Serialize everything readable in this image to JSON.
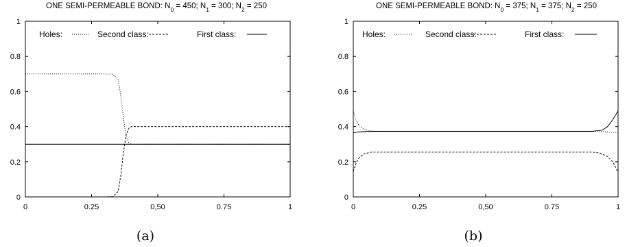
{
  "chart_data": [
    {
      "type": "line",
      "title": {
        "prefix": "ONE SEMI-PERMEABLE BOND:  N",
        "n0_sub": "0",
        "n0_val": " = 450; N",
        "n1_sub": "1",
        "n1_val": " = 300; N",
        "n2_sub": "2",
        "n2_val": " = 250"
      },
      "caption": "(a)",
      "xlim": [
        0,
        1
      ],
      "ylim": [
        0,
        1
      ],
      "xticks": [
        "0",
        "0.25",
        "0,50",
        "0.75",
        "1"
      ],
      "xtick_values": [
        0,
        0.25,
        0.5,
        0.75,
        1
      ],
      "yticks": [
        "0",
        "0.2",
        "0.4",
        "0.6",
        "0.8",
        "1"
      ],
      "ytick_values": [
        0,
        0.2,
        0.4,
        0.6,
        0.8,
        1
      ],
      "legend_position": "top",
      "series": [
        {
          "name": "Holes:",
          "dash": "dotted",
          "x": [
            0,
            0.2,
            0.3,
            0.33,
            0.35,
            0.36,
            0.37,
            0.38,
            0.39,
            0.4,
            0.41,
            0.5,
            0.75,
            1
          ],
          "y": [
            0.7,
            0.7,
            0.7,
            0.698,
            0.67,
            0.58,
            0.45,
            0.35,
            0.31,
            0.3,
            0.3,
            0.3,
            0.3,
            0.3
          ]
        },
        {
          "name": "Second class:",
          "dash": "dashed",
          "x": [
            0,
            0.2,
            0.3,
            0.33,
            0.35,
            0.36,
            0.37,
            0.38,
            0.39,
            0.4,
            0.41,
            0.5,
            0.75,
            1
          ],
          "y": [
            0,
            0,
            0,
            0.002,
            0.03,
            0.12,
            0.25,
            0.35,
            0.39,
            0.4,
            0.4,
            0.4,
            0.4,
            0.4
          ]
        },
        {
          "name": "First class:",
          "dash": "solid",
          "x": [
            0,
            0.25,
            0.5,
            0.75,
            1
          ],
          "y": [
            0.3,
            0.3,
            0.3,
            0.3,
            0.3
          ]
        }
      ]
    },
    {
      "type": "line",
      "title": {
        "prefix": "ONE SEMI-PERMEABLE BOND:  N",
        "n0_sub": "0",
        "n0_val": " = 375; N",
        "n1_sub": "1",
        "n1_val": " = 375; N",
        "n2_sub": "2",
        "n2_val": " = 250"
      },
      "caption": "(b)",
      "xlim": [
        0,
        1
      ],
      "ylim": [
        0,
        1
      ],
      "xticks": [
        "0",
        "0.25",
        "0,50",
        "0.75",
        "1"
      ],
      "xtick_values": [
        0,
        0.25,
        0.5,
        0.75,
        1
      ],
      "yticks": [
        "0",
        "0.2",
        "0.4",
        "0.6",
        "0.8",
        "1"
      ],
      "ytick_values": [
        0,
        0.2,
        0.4,
        0.6,
        0.8,
        1
      ],
      "legend_position": "top",
      "series": [
        {
          "name": "Holes:",
          "dash": "dotted",
          "x": [
            0,
            0.01,
            0.02,
            0.04,
            0.07,
            0.1,
            0.5,
            0.9,
            0.93,
            0.96,
            0.98,
            1
          ],
          "y": [
            0.49,
            0.44,
            0.41,
            0.385,
            0.375,
            0.373,
            0.373,
            0.373,
            0.372,
            0.37,
            0.368,
            0.365
          ]
        },
        {
          "name": "Second class:",
          "dash": "dashed",
          "x": [
            0,
            0.01,
            0.02,
            0.04,
            0.07,
            0.1,
            0.5,
            0.9,
            0.93,
            0.96,
            0.98,
            1
          ],
          "y": [
            0.145,
            0.19,
            0.22,
            0.245,
            0.255,
            0.255,
            0.255,
            0.255,
            0.25,
            0.23,
            0.2,
            0.14
          ]
        },
        {
          "name": "First class:",
          "dash": "solid",
          "x": [
            0,
            0.02,
            0.05,
            0.1,
            0.5,
            0.9,
            0.94,
            0.96,
            0.98,
            1
          ],
          "y": [
            0.365,
            0.37,
            0.372,
            0.373,
            0.373,
            0.373,
            0.38,
            0.4,
            0.44,
            0.49
          ]
        }
      ]
    }
  ]
}
